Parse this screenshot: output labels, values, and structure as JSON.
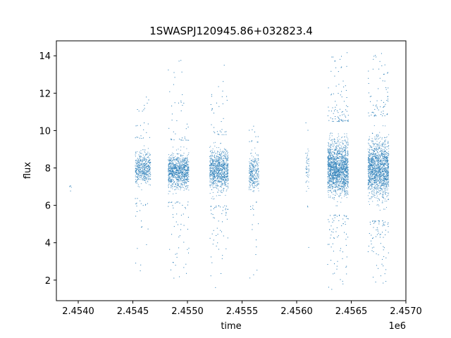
{
  "chart_data": {
    "type": "scatter",
    "title": "1SWASPJ120945.86+032823.4",
    "xlabel": "time",
    "ylabel": "flux",
    "x_offset_label": "1e6",
    "xlim": [
      2453800,
      2457000
    ],
    "ylim": [
      0.9,
      14.8
    ],
    "x_ticks": [
      2454000,
      2454500,
      2455000,
      2455500,
      2456000,
      2456500,
      2457000
    ],
    "x_tick_labels": [
      "2.4540",
      "2.4545",
      "2.4550",
      "2.4555",
      "2.4560",
      "2.4565",
      "2.4570"
    ],
    "y_ticks": [
      2,
      4,
      6,
      8,
      10,
      12,
      14
    ],
    "y_tick_labels": [
      "2",
      "4",
      "6",
      "8",
      "10",
      "12",
      "14"
    ],
    "grid": false,
    "marker_color": "#1f77b4",
    "clusters": [
      {
        "x_start": 2453920,
        "x_end": 2453935,
        "core_min": 6.8,
        "core_max": 7.2,
        "spread_min": 6.1,
        "spread_max": 7.2,
        "density": 0.1
      },
      {
        "x_start": 2454520,
        "x_end": 2454660,
        "core_min": 6.4,
        "core_max": 9.6,
        "spread_min": 2.5,
        "spread_max": 12.1,
        "density": 1.0
      },
      {
        "x_start": 2454820,
        "x_end": 2455010,
        "core_min": 6.2,
        "core_max": 9.5,
        "spread_min": 1.6,
        "spread_max": 13.8,
        "density": 1.4
      },
      {
        "x_start": 2455200,
        "x_end": 2455370,
        "core_min": 6.0,
        "core_max": 9.8,
        "spread_min": 1.5,
        "spread_max": 14.0,
        "density": 1.5
      },
      {
        "x_start": 2455560,
        "x_end": 2455650,
        "core_min": 6.2,
        "core_max": 9.4,
        "spread_min": 1.7,
        "spread_max": 10.6,
        "density": 0.9
      },
      {
        "x_start": 2456080,
        "x_end": 2456110,
        "core_min": 6.0,
        "core_max": 9.8,
        "spread_min": 2.4,
        "spread_max": 13.4,
        "density": 0.5
      },
      {
        "x_start": 2456280,
        "x_end": 2456470,
        "core_min": 5.5,
        "core_max": 10.5,
        "spread_min": 1.5,
        "spread_max": 14.2,
        "density": 2.4
      },
      {
        "x_start": 2456650,
        "x_end": 2456840,
        "core_min": 5.2,
        "core_max": 10.8,
        "spread_min": 1.6,
        "spread_max": 14.2,
        "density": 2.2
      }
    ]
  }
}
